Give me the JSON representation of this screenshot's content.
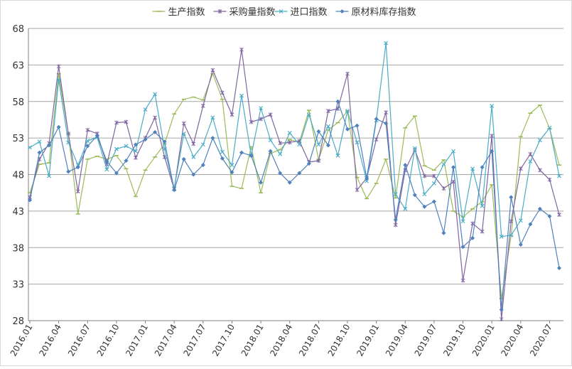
{
  "chart_data": {
    "type": "line",
    "legend_position": "top",
    "grid": true,
    "ylim": [
      28,
      68
    ],
    "y_ticks": [
      28,
      33,
      38,
      43,
      48,
      53,
      58,
      63,
      68
    ],
    "x": [
      "2016.01",
      "2016.02",
      "2016.03",
      "2016.04",
      "2016.05",
      "2016.06",
      "2016.07",
      "2016.08",
      "2016.09",
      "2016.10",
      "2016.11",
      "2016.12",
      "2017.01",
      "2017.02",
      "2017.03",
      "2017.04",
      "2017.05",
      "2017.06",
      "2017.07",
      "2017.08",
      "2017.09",
      "2017.10",
      "2017.11",
      "2017.12",
      "2018.01",
      "2018.02",
      "2018.03",
      "2018.04",
      "2018.05",
      "2018.06",
      "2018.07",
      "2018.08",
      "2018.09",
      "2018.10",
      "2018.11",
      "2018.12",
      "2019.01",
      "2019.02",
      "2019.03",
      "2019.04",
      "2019.05",
      "2019.06",
      "2019.07",
      "2019.08",
      "2019.09",
      "2019.10",
      "2019.11",
      "2019.12",
      "2020.01",
      "2020.02",
      "2020.03",
      "2020.04",
      "2020.05",
      "2020.06",
      "2020.07",
      "2020.08"
    ],
    "x_tick_labels": [
      "2016.01",
      "2016.04",
      "2016.07",
      "2016.10",
      "2017.01",
      "2017.04",
      "2017.07",
      "2017.10",
      "2018.01",
      "2018.04",
      "2018.07",
      "2018.10",
      "2019.01",
      "2019.04",
      "2019.07",
      "2019.10",
      "2020.01",
      "2020.04",
      "2020.07"
    ],
    "series": [
      {
        "name": "生产指数",
        "color": "#9bbb59",
        "marker": "dash",
        "values": [
          45.5,
          49.4,
          49.6,
          61.8,
          53.6,
          42.6,
          50.1,
          50.5,
          50.1,
          50.6,
          48.8,
          45.0,
          48.6,
          50.4,
          52.2,
          56.3,
          58.3,
          58.6,
          58.2,
          61.8,
          58.3,
          46.4,
          46.1,
          51.8,
          45.5,
          50.9,
          51.4,
          52.8,
          52.4,
          56.8,
          50.0,
          54.1,
          55.1,
          56.7,
          47.6,
          44.7,
          46.8,
          50.1,
          44.8,
          54.4,
          56.0,
          49.2,
          48.6,
          50.0,
          43.0,
          42.2,
          43.3,
          44.3,
          46.6,
          31.0,
          39.6,
          53.2,
          56.4,
          57.5,
          54.3,
          49.3
        ]
      },
      {
        "name": "采购量指数",
        "color": "#8064a2",
        "marker": "star",
        "values": [
          44.9,
          50.1,
          52.3,
          62.8,
          53.6,
          45.7,
          54.1,
          53.6,
          49.4,
          55.1,
          55.2,
          50.3,
          53.0,
          55.8,
          50.4,
          46.0,
          55.0,
          52.2,
          57.4,
          62.3,
          59.2,
          56.2,
          65.1,
          55.2,
          55.6,
          56.2,
          52.3,
          52.4,
          52.6,
          49.7,
          49.9,
          56.7,
          57.0,
          61.8,
          45.9,
          47.5,
          52.8,
          56.5,
          41.1,
          48.6,
          51.4,
          47.8,
          47.8,
          46.1,
          47.0,
          33.5,
          41.3,
          40.2,
          53.3,
          28.2,
          41.6,
          48.8,
          50.8,
          48.6,
          47.3,
          42.5
        ]
      },
      {
        "name": "进口指数",
        "color": "#4bacc6",
        "marker": "x",
        "values": [
          51.7,
          52.5,
          47.8,
          61.0,
          52.4,
          49.3,
          52.6,
          53.1,
          48.7,
          51.5,
          51.9,
          51.2,
          56.9,
          59.0,
          51.5,
          46.1,
          53.6,
          50.4,
          52.1,
          55.8,
          51.1,
          49.3,
          58.8,
          50.6,
          57.1,
          52.7,
          50.8,
          53.7,
          52.1,
          56.2,
          52.1,
          54.6,
          50.6,
          56.7,
          52.4,
          47.1,
          55.4,
          66.0,
          45.3,
          43.3,
          51.6,
          45.3,
          46.8,
          49.4,
          51.2,
          41.6,
          48.8,
          43.7,
          57.4,
          39.5,
          39.7,
          41.7,
          49.8,
          52.7,
          54.4,
          47.8
        ]
      },
      {
        "name": "原材料库存指数",
        "color": "#4f81bd",
        "marker": "diamond",
        "values": [
          44.5,
          51.0,
          52.0,
          54.5,
          48.4,
          49.0,
          51.9,
          53.3,
          49.8,
          48.2,
          49.9,
          52.1,
          52.8,
          53.8,
          52.5,
          45.9,
          50.1,
          48.0,
          49.3,
          53.0,
          50.2,
          48.3,
          51.0,
          50.6,
          46.9,
          51.2,
          48.2,
          46.9,
          48.2,
          49.5,
          53.9,
          52.0,
          58.0,
          54.2,
          54.7,
          47.5,
          55.6,
          55.0,
          41.8,
          49.3,
          45.2,
          43.6,
          44.3,
          40.0,
          49.0,
          38.1,
          39.3,
          49.0,
          51.2,
          29.5,
          44.9,
          38.4,
          41.2,
          43.3,
          42.3,
          35.2
        ]
      }
    ]
  }
}
